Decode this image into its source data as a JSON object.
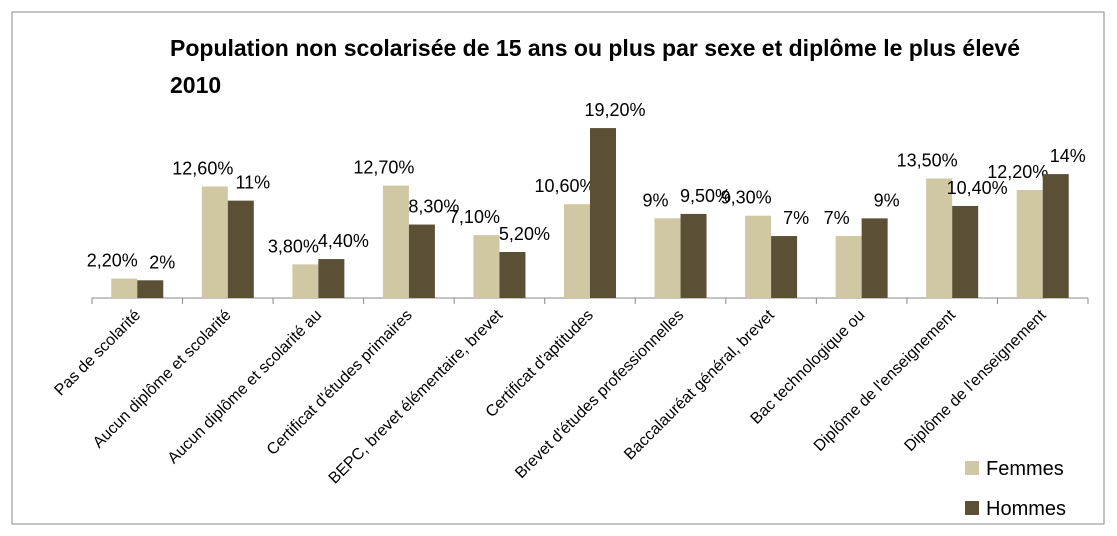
{
  "chart_data": {
    "type": "bar",
    "title": "Population non scolarisée de 15 ans ou plus par sexe et diplôme le plus élevé 2010",
    "categories": [
      "Pas de scolarité",
      "Aucun diplôme et scolarité",
      "Aucun diplôme et scolarité au",
      "Certificat d'études primaires",
      "BEPC, brevet élémentaire, brevet",
      "Certificat d'aptitudes",
      "Brevet d'études professionnelles",
      "Baccalauréat général, brevet",
      "Bac technologique ou",
      "Diplôme de l'enseignement",
      "Diplôme de l'enseignement"
    ],
    "series": [
      {
        "name": "Femmes",
        "color": "#d0c7a3",
        "values": [
          2.2,
          12.6,
          3.8,
          12.7,
          7.1,
          10.6,
          9,
          9.3,
          7,
          13.5,
          12.2
        ],
        "value_labels": [
          "2,20%",
          "12,60%",
          "3,80%",
          "12,70%",
          "7,10%",
          "10,60%",
          "9%",
          "9,30%",
          "7%",
          "13,50%",
          "12,20%"
        ]
      },
      {
        "name": "Hommes",
        "color": "#5b4f36",
        "values": [
          2,
          11,
          4.4,
          8.3,
          5.2,
          19.2,
          9.5,
          7,
          9,
          10.4,
          14
        ],
        "value_labels": [
          "2%",
          "11%",
          "4,40%",
          "8,30%",
          "5,20%",
          "19,20%",
          "9,50%",
          "7%",
          "9%",
          "10,40%",
          "14%"
        ]
      }
    ],
    "legend": "bottom-right"
  }
}
